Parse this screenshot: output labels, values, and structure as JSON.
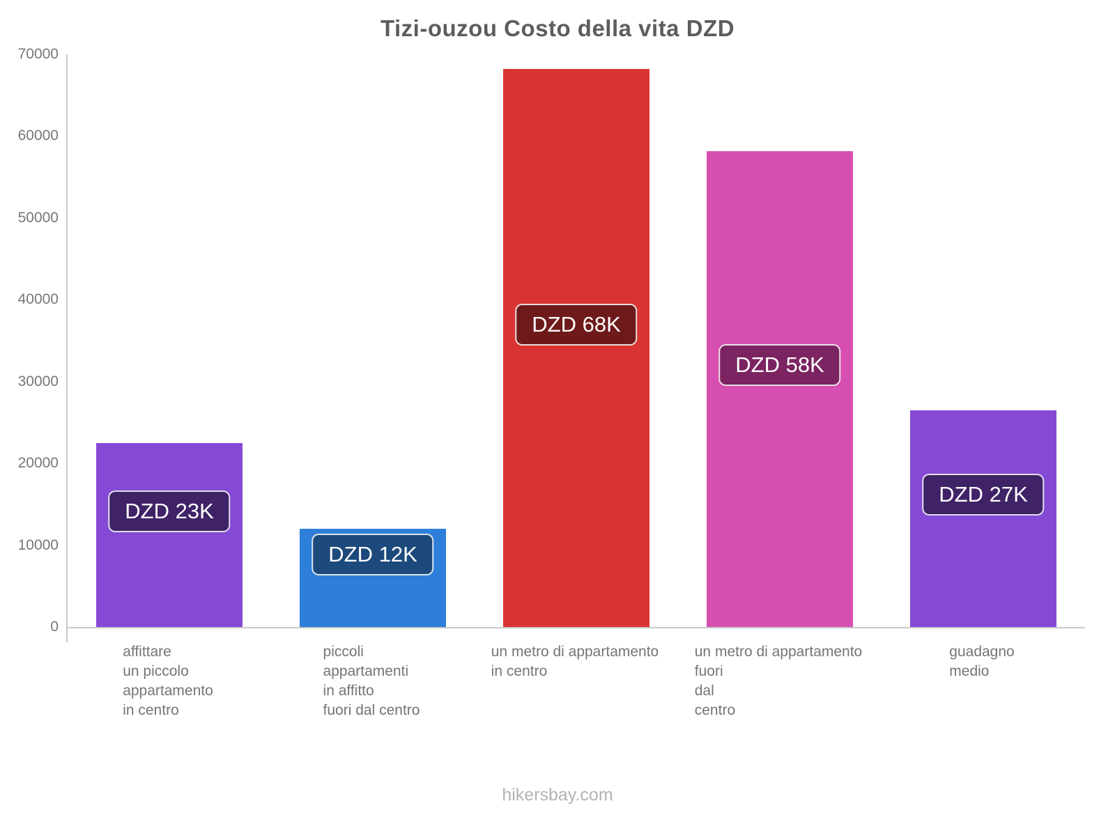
{
  "page": {
    "title": "Tizi-ouzou Costo della vita DZD",
    "footer": "hikersbay.com"
  },
  "chart_data": {
    "type": "bar",
    "title": "Tizi-ouzou Costo della vita DZD",
    "currency": "DZD",
    "categories": [
      [
        "affittare",
        "un piccolo",
        "appartamento",
        "in centro"
      ],
      [
        "piccoli",
        "appartamenti",
        "in affitto",
        "fuori dal centro"
      ],
      [
        "un metro di appartamento",
        "in centro"
      ],
      [
        "un metro di appartamento",
        "fuori",
        "dal",
        "centro"
      ],
      [
        "guadagno",
        "medio"
      ]
    ],
    "values": [
      22500,
      12000,
      68200,
      58200,
      26500
    ],
    "data_labels": [
      "DZD 23K",
      "DZD 12K",
      "DZD 68K",
      "DZD 58K",
      "DZD 27K"
    ],
    "bar_colors": [
      "#8549d6",
      "#2e7fd9",
      "#d93433",
      "#d74fb1",
      "#8549d6"
    ],
    "label_bg_colors": [
      "#3f2366",
      "#1c4a7c",
      "#6e1a1a",
      "#7c2361",
      "#3f2366"
    ],
    "xlabel": "",
    "ylabel": "",
    "ylim": [
      0,
      70000
    ],
    "yticks": [
      0,
      10000,
      20000,
      30000,
      40000,
      50000,
      60000,
      70000
    ],
    "grid": false,
    "legend_position": "none"
  }
}
